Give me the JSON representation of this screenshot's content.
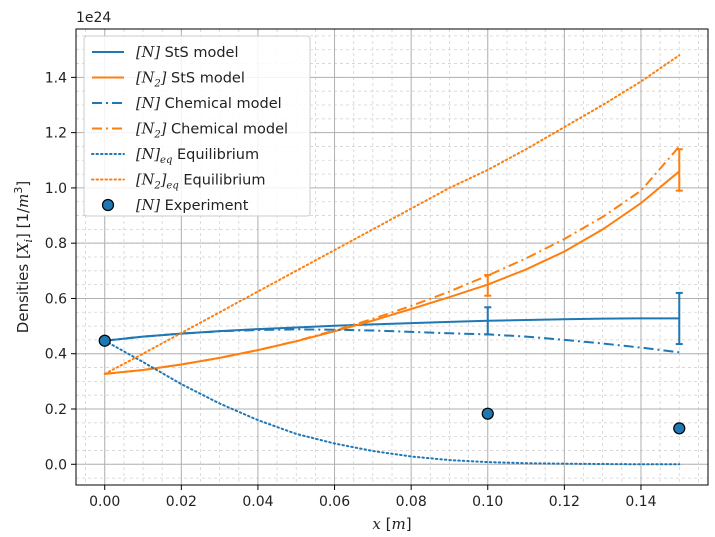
{
  "chart_data": {
    "type": "line",
    "xlabel": "x [m]",
    "ylabel": "Densities [X_i] [1/m^3]",
    "offset_text": "1e24",
    "xlim": [
      -0.0075,
      0.1575
    ],
    "ylim": [
      -0.075,
      1.575
    ],
    "xticks": [
      0.0,
      0.02,
      0.04,
      0.06,
      0.08,
      0.1,
      0.12,
      0.14
    ],
    "xtick_labels": [
      "0.00",
      "0.02",
      "0.04",
      "0.06",
      "0.08",
      "0.10",
      "0.12",
      "0.14"
    ],
    "yticks": [
      0.0,
      0.2,
      0.4,
      0.6,
      0.8,
      1.0,
      1.2,
      1.4
    ],
    "ytick_labels": [
      "0.0",
      "0.2",
      "0.4",
      "0.6",
      "0.8",
      "1.0",
      "1.2",
      "1.4"
    ],
    "grid": true,
    "minor_grid": true,
    "legend_position": "upper-left",
    "series": [
      {
        "name": "[N] StS model",
        "label_math": "[N]",
        "label_text": " StS model",
        "style": "solid",
        "color": "#1f77b4",
        "x": [
          0.0,
          0.01,
          0.02,
          0.03,
          0.04,
          0.05,
          0.06,
          0.07,
          0.08,
          0.09,
          0.1,
          0.11,
          0.12,
          0.13,
          0.14,
          0.15
        ],
        "y": [
          0.447,
          0.462,
          0.473,
          0.482,
          0.489,
          0.495,
          0.501,
          0.506,
          0.511,
          0.515,
          0.519,
          0.522,
          0.525,
          0.527,
          0.528,
          0.528
        ]
      },
      {
        "name": "[N2] StS model",
        "label_math": "[N2]",
        "label_text": " StS model",
        "style": "solid",
        "color": "#ff7f0e",
        "x": [
          0.0,
          0.01,
          0.02,
          0.03,
          0.04,
          0.05,
          0.06,
          0.07,
          0.08,
          0.09,
          0.1,
          0.11,
          0.12,
          0.13,
          0.14,
          0.15
        ],
        "y": [
          0.327,
          0.341,
          0.361,
          0.385,
          0.413,
          0.445,
          0.481,
          0.52,
          0.562,
          0.605,
          0.65,
          0.705,
          0.77,
          0.85,
          0.945,
          1.06
        ]
      },
      {
        "name": "[N] Chemical model",
        "label_math": "[N]",
        "label_text": " Chemical model",
        "style": "dashdot",
        "color": "#1f77b4",
        "x": [
          0.0,
          0.01,
          0.02,
          0.03,
          0.04,
          0.05,
          0.06,
          0.07,
          0.08,
          0.09,
          0.1,
          0.11,
          0.12,
          0.13,
          0.14,
          0.15
        ],
        "y": [
          0.447,
          0.462,
          0.473,
          0.481,
          0.486,
          0.488,
          0.487,
          0.484,
          0.479,
          0.474,
          0.47,
          0.462,
          0.45,
          0.437,
          0.422,
          0.405
        ]
      },
      {
        "name": "[N2] Chemical model",
        "label_math": "[N2]",
        "label_text": " Chemical model",
        "style": "dashdot",
        "color": "#ff7f0e",
        "x": [
          0.0,
          0.01,
          0.02,
          0.03,
          0.04,
          0.05,
          0.06,
          0.07,
          0.08,
          0.09,
          0.1,
          0.11,
          0.12,
          0.13,
          0.14,
          0.15
        ],
        "y": [
          0.327,
          0.341,
          0.361,
          0.385,
          0.413,
          0.446,
          0.484,
          0.526,
          0.573,
          0.625,
          0.683,
          0.745,
          0.815,
          0.895,
          0.99,
          1.15
        ]
      },
      {
        "name": "[N]eq Equilibrium",
        "label_math": "[N]eq",
        "label_text": " Equilibrium",
        "style": "dotted",
        "color": "#1f77b4",
        "x": [
          0.0,
          0.01,
          0.02,
          0.03,
          0.04,
          0.05,
          0.06,
          0.07,
          0.08,
          0.09,
          0.1,
          0.11,
          0.12,
          0.13,
          0.14,
          0.15
        ],
        "y": [
          0.447,
          0.37,
          0.29,
          0.22,
          0.16,
          0.11,
          0.075,
          0.048,
          0.028,
          0.015,
          0.008,
          0.004,
          0.002,
          0.001,
          0.0,
          0.0
        ]
      },
      {
        "name": "[N2]eq Equilibrium",
        "label_math": "[N2]eq",
        "label_text": " Equilibrium",
        "style": "dotted",
        "color": "#ff7f0e",
        "x": [
          0.0,
          0.01,
          0.02,
          0.03,
          0.04,
          0.05,
          0.06,
          0.07,
          0.08,
          0.09,
          0.1,
          0.11,
          0.12,
          0.13,
          0.14,
          0.15
        ],
        "y": [
          0.327,
          0.4,
          0.475,
          0.55,
          0.625,
          0.7,
          0.775,
          0.85,
          0.925,
          1.0,
          1.065,
          1.14,
          1.22,
          1.3,
          1.385,
          1.48
        ]
      },
      {
        "name": "[N] Experiment",
        "label_math": "[N]",
        "label_text": " Experiment",
        "style": "marker",
        "color": "#1f77b4",
        "x": [
          0.0,
          0.1,
          0.15
        ],
        "y": [
          0.447,
          0.183,
          0.13
        ]
      }
    ],
    "error_bars": [
      {
        "x": 0.1,
        "low": 0.47,
        "high": 0.568,
        "color": "#1f77b4"
      },
      {
        "x": 0.15,
        "low": 0.435,
        "high": 0.62,
        "color": "#1f77b4"
      },
      {
        "x": 0.1,
        "low": 0.61,
        "high": 0.685,
        "color": "#ff7f0e"
      },
      {
        "x": 0.15,
        "low": 0.99,
        "high": 1.14,
        "color": "#ff7f0e"
      }
    ]
  }
}
